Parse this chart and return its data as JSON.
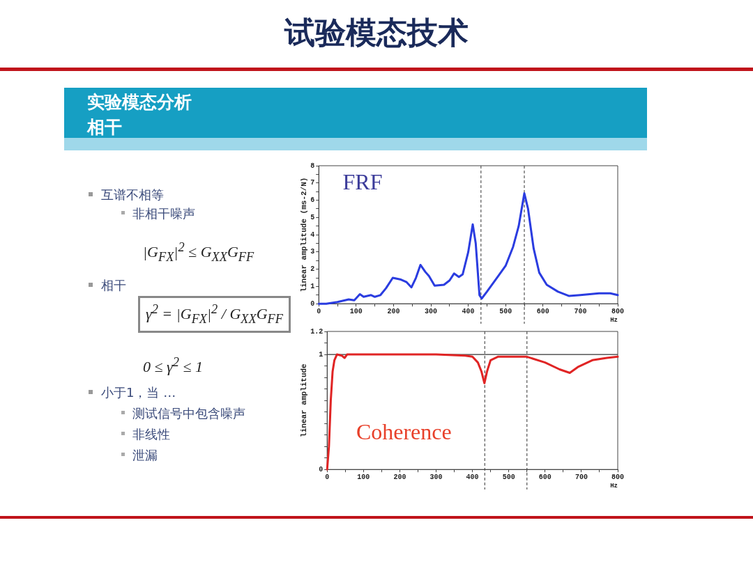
{
  "chart_data": [
    {
      "type": "other",
      "title": "试验模态技术",
      "subtitle": "实验模态分析",
      "annotations": [
        "相干",
        "互谱不相等",
        "非相干噪声",
        "|G$_{FX}$|$^{2}$ ≤ G$_{XX}$G$_{FF}$",
        "相干",
        "γ$^{2}$ = |G$_{FX}$|$^{2}$ / G$_{XX}$G$_{FF}$",
        "0 ≤ γ$^{2}$ ≤ 1",
        "小于1，当 …",
        "测试信号中包含噪声",
        "非线性",
        "泄漏"
      ]
    },
    {
      "type": "line",
      "xlabel": "Hz",
      "ylabel": "linear amplitude (ms-2/N)",
      "annotations": [
        "FRF"
      ],
      "grid": false,
      "xlim": [
        0,
        800
      ],
      "xticks": [
        0,
        {
          "value": 50,
          "label": null
        },
        100,
        {
          "value": 150,
          "label": null
        },
        200,
        {
          "value": 250,
          "label": null
        },
        300,
        {
          "value": 350,
          "label": null
        },
        400,
        {
          "value": 450,
          "label": null
        },
        500,
        {
          "value": 550,
          "label": null
        },
        600,
        {
          "value": 650,
          "label": null
        },
        700,
        {
          "value": 750,
          "label": null
        },
        800
      ],
      "ylim": [
        0,
        8
      ],
      "yticks": [
        0,
        {
          "value": 0.5,
          "label": null
        },
        1,
        {
          "value": 1.5,
          "label": null
        },
        2,
        {
          "value": 2.5,
          "label": null
        },
        3,
        {
          "value": 3.5,
          "label": null
        },
        4,
        {
          "value": 4.5,
          "label": null
        },
        5,
        {
          "value": 5.5,
          "label": null
        },
        6,
        {
          "value": 6.5,
          "label": null
        },
        7,
        {
          "value": 7.5,
          "label": null
        },
        8
      ],
      "ref_lines": [
        {
          "axis": "x",
          "value": 434,
          "color": "#555555",
          "line_style": "dashed"
        },
        {
          "axis": "x",
          "value": 550,
          "color": "#555555",
          "line_style": "dashed"
        }
      ],
      "series": [
        {
          "color": "#2a3ce0",
          "x": [
            0,
            20,
            50,
            80,
            95,
            110,
            120,
            140,
            150,
            165,
            180,
            198,
            220,
            235,
            248,
            260,
            272,
            285,
            295,
            310,
            335,
            350,
            362,
            375,
            385,
            400,
            412,
            420,
            430,
            436,
            450,
            480,
            500,
            520,
            535,
            550,
            560,
            575,
            590,
            610,
            640,
            670,
            700,
            750,
            780,
            800
          ],
          "values": [
            0,
            0,
            0.1,
            0.25,
            0.2,
            0.55,
            0.4,
            0.5,
            0.4,
            0.5,
            0.9,
            1.5,
            1.4,
            1.25,
            0.95,
            1.5,
            2.25,
            1.85,
            1.6,
            1.05,
            1.1,
            1.35,
            1.75,
            1.55,
            1.7,
            3.0,
            4.6,
            3.5,
            0.5,
            0.3,
            0.7,
            1.6,
            2.2,
            3.3,
            4.5,
            6.4,
            5.5,
            3.2,
            1.8,
            1.1,
            0.7,
            0.45,
            0.5,
            0.6,
            0.6,
            0.5
          ]
        }
      ]
    },
    {
      "type": "line",
      "xlabel": "Hz",
      "ylabel": "linear amplitude",
      "annotations": [
        "Coherence"
      ],
      "grid": false,
      "xlim": [
        0,
        800
      ],
      "xticks": [
        0,
        {
          "value": 50,
          "label": null
        },
        100,
        {
          "value": 150,
          "label": null
        },
        200,
        {
          "value": 250,
          "label": null
        },
        300,
        {
          "value": 350,
          "label": null
        },
        400,
        {
          "value": 450,
          "label": null
        },
        500,
        {
          "value": 550,
          "label": null
        },
        600,
        {
          "value": 650,
          "label": null
        },
        700,
        {
          "value": 750,
          "label": null
        },
        800
      ],
      "ylim": [
        0,
        1.2
      ],
      "yticks": [
        0,
        {
          "value": 0.1,
          "label": null
        },
        {
          "value": 0.2,
          "label": null
        },
        {
          "value": 0.3,
          "label": null
        },
        {
          "value": 0.4,
          "label": null
        },
        {
          "value": 0.5,
          "label": null
        },
        {
          "value": 0.6,
          "label": null
        },
        {
          "value": 0.7,
          "label": null
        },
        {
          "value": 0.8,
          "label": null
        },
        {
          "value": 0.9,
          "label": null
        },
        1,
        {
          "value": 1.1,
          "label": null
        },
        1.2
      ],
      "ref_lines": [
        {
          "axis": "y",
          "value": 1,
          "color": "#333333",
          "line_style": "solid"
        },
        {
          "axis": "x",
          "value": 434,
          "color": "#555555",
          "line_style": "dashed"
        },
        {
          "axis": "x",
          "value": 550,
          "color": "#555555",
          "line_style": "dashed"
        }
      ],
      "series": [
        {
          "color": "#e02424",
          "x": [
            0,
            5,
            10,
            15,
            20,
            27,
            40,
            48,
            55,
            100,
            200,
            300,
            380,
            400,
            415,
            425,
            433,
            440,
            450,
            470,
            550,
            600,
            640,
            668,
            690,
            730,
            770,
            800
          ],
          "values": [
            0,
            0.2,
            0.6,
            0.85,
            0.95,
            1.0,
            0.99,
            0.97,
            1.0,
            1.0,
            1.0,
            1.0,
            0.99,
            0.98,
            0.93,
            0.85,
            0.75,
            0.85,
            0.95,
            0.98,
            0.98,
            0.93,
            0.87,
            0.84,
            0.89,
            0.95,
            0.97,
            0.98
          ]
        }
      ]
    }
  ]
}
